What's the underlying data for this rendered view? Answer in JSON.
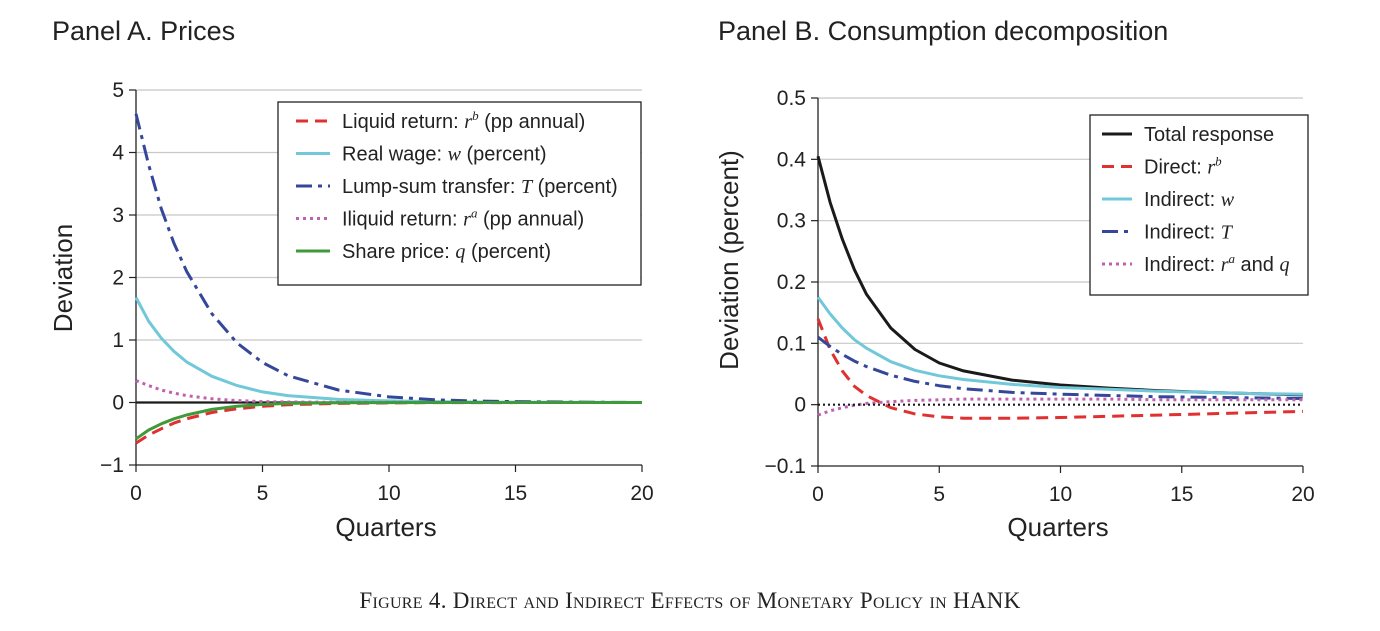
{
  "caption": "Figure 4. Direct and Indirect Effects of Monetary Policy in HANK",
  "chart_data": [
    {
      "type": "line",
      "title": "Panel A. Prices",
      "xlabel": "Quarters",
      "ylabel": "Deviation",
      "xlim": [
        0,
        20
      ],
      "ylim": [
        -1,
        5
      ],
      "xticks": [
        "0",
        "5",
        "10",
        "15",
        "20"
      ],
      "yticks": [
        "−1",
        "0",
        "1",
        "2",
        "3",
        "4",
        "5"
      ],
      "grid": "horizontal",
      "legend_position": "top-right",
      "x": [
        0,
        0.5,
        1,
        1.5,
        2,
        3,
        4,
        5,
        6,
        8,
        10,
        12,
        14,
        16,
        18,
        20
      ],
      "series": [
        {
          "name": "Liquid return: ",
          "symbol": "r",
          "sup": "b",
          "suffix": " (pp annual)",
          "color": "#e03030",
          "dash": "dashed",
          "values": [
            -0.65,
            -0.52,
            -0.42,
            -0.33,
            -0.26,
            -0.16,
            -0.1,
            -0.06,
            -0.035,
            -0.015,
            -0.006,
            -0.002,
            -0.001,
            0,
            0,
            0
          ]
        },
        {
          "name": "Real wage: ",
          "symbol": "w",
          "sup": "",
          "suffix": " (percent)",
          "color": "#70c8d8",
          "dash": "solid",
          "values": [
            1.68,
            1.3,
            1.03,
            0.82,
            0.65,
            0.42,
            0.27,
            0.17,
            0.11,
            0.05,
            0.025,
            0.012,
            0.006,
            0.003,
            0.001,
            0
          ]
        },
        {
          "name": "Lump-sum transfer: ",
          "symbol": "T",
          "sup": "",
          "suffix": " (percent)",
          "color": "#35479a",
          "dash": "dashdot",
          "values": [
            4.62,
            3.8,
            3.1,
            2.55,
            2.1,
            1.42,
            0.95,
            0.64,
            0.43,
            0.2,
            0.09,
            0.04,
            0.02,
            0.01,
            0.005,
            0
          ]
        },
        {
          "name": "Iliquid return: ",
          "symbol": "r",
          "sup": "a",
          "suffix": " (pp annual)",
          "color": "#c060b0",
          "dash": "dotted",
          "values": [
            0.35,
            0.27,
            0.2,
            0.15,
            0.11,
            0.06,
            0.03,
            0.015,
            0.008,
            0.003,
            0.001,
            0,
            0,
            0,
            0,
            0
          ]
        },
        {
          "name": "Share price: ",
          "symbol": "q",
          "sup": "",
          "suffix": " (percent)",
          "color": "#3f9a3a",
          "dash": "solid",
          "values": [
            -0.58,
            -0.44,
            -0.34,
            -0.26,
            -0.2,
            -0.11,
            -0.06,
            -0.03,
            -0.015,
            -0.005,
            -0.002,
            0,
            0,
            0,
            0,
            0
          ]
        }
      ]
    },
    {
      "type": "line",
      "title": "Panel B. Consumption decomposition",
      "xlabel": "Quarters",
      "ylabel": "Deviation (percent)",
      "xlim": [
        0,
        20
      ],
      "ylim": [
        -0.1,
        0.5
      ],
      "xticks": [
        "0",
        "5",
        "10",
        "15",
        "20"
      ],
      "yticks": [
        "−0.1",
        "0",
        "0.1",
        "0.2",
        "0.3",
        "0.4",
        "0.5"
      ],
      "grid": "horizontal",
      "legend_position": "top-right",
      "x": [
        0,
        0.5,
        1,
        1.5,
        2,
        3,
        4,
        5,
        6,
        8,
        10,
        12,
        14,
        16,
        18,
        20
      ],
      "series": [
        {
          "name": "Total response",
          "symbol": "",
          "sup": "",
          "suffix": "",
          "color": "#1a1a1a",
          "dash": "solid",
          "values": [
            0.405,
            0.33,
            0.27,
            0.22,
            0.18,
            0.125,
            0.09,
            0.068,
            0.055,
            0.04,
            0.032,
            0.027,
            0.023,
            0.02,
            0.018,
            0.016
          ]
        },
        {
          "name": "Direct: ",
          "symbol": "r",
          "sup": "b",
          "suffix": "",
          "color": "#e03030",
          "dash": "dashed",
          "values": [
            0.14,
            0.09,
            0.055,
            0.03,
            0.015,
            -0.005,
            -0.015,
            -0.02,
            -0.022,
            -0.022,
            -0.021,
            -0.019,
            -0.017,
            -0.015,
            -0.013,
            -0.011
          ]
        },
        {
          "name": "Indirect: ",
          "symbol": "w",
          "sup": "",
          "suffix": "",
          "color": "#70c8d8",
          "dash": "solid",
          "values": [
            0.175,
            0.148,
            0.125,
            0.106,
            0.092,
            0.07,
            0.056,
            0.047,
            0.041,
            0.033,
            0.028,
            0.025,
            0.022,
            0.02,
            0.018,
            0.017
          ]
        },
        {
          "name": "Indirect: ",
          "symbol": "T",
          "sup": "",
          "suffix": "",
          "color": "#35479a",
          "dash": "dashdot",
          "values": [
            0.11,
            0.095,
            0.082,
            0.071,
            0.062,
            0.048,
            0.038,
            0.031,
            0.026,
            0.02,
            0.017,
            0.015,
            0.013,
            0.012,
            0.011,
            0.01
          ]
        },
        {
          "name": "Indirect: ",
          "symbol": "r",
          "sup": "a",
          "suffix": " and ",
          "symbol2": "q",
          "color": "#c060b0",
          "dash": "dotted",
          "values": [
            -0.017,
            -0.01,
            -0.005,
            -0.001,
            0.002,
            0.005,
            0.007,
            0.008,
            0.009,
            0.009,
            0.009,
            0.009,
            0.008,
            0.008,
            0.008,
            0.008
          ]
        },
        {
          "name": "Zero line",
          "symbol": "",
          "sup": "",
          "suffix": "",
          "color": "#1a1a1a",
          "dash": "fine-dotted",
          "legend": false,
          "values": [
            0,
            0,
            0,
            0,
            0,
            0,
            0,
            0,
            0,
            0,
            0,
            0,
            0,
            0,
            0,
            0
          ]
        }
      ]
    }
  ]
}
